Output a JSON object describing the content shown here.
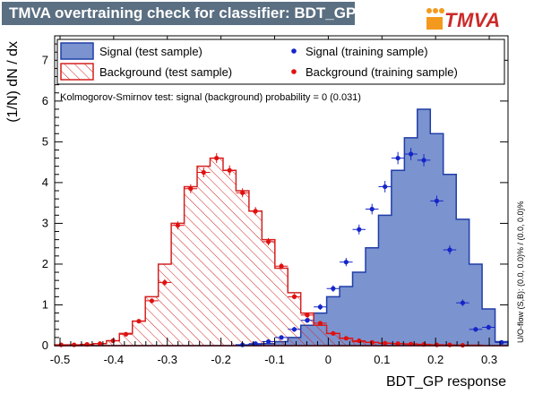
{
  "header": {
    "title": "TMVA overtraining check for classifier: BDT_GP",
    "logo_text": "TMVA"
  },
  "legend": {
    "signal_test": "Signal (test sample)",
    "background_test": "Background (test sample)",
    "signal_train": "Signal (training sample)",
    "background_train": "Background (training sample)"
  },
  "ks_text": "Kolmogorov-Smirnov test: signal (background) probability =     0 (0.031)",
  "side_note": "U/O-flow (S,B): (0.0, 0.0)% / (0.0, 0.0)%",
  "colors": {
    "signal_fill": "#7b93cf",
    "signal_line": "#1f3ea8",
    "background_line": "#d32121",
    "signal_marker": "#1525c8",
    "background_marker": "#e01010",
    "title_bar": "#5b6f82"
  },
  "chart_data": {
    "type": "histogram",
    "xlabel": "BDT_GP response",
    "ylabel": "(1/N) dN / dx",
    "xlim": [
      -0.51,
      0.335
    ],
    "ylim": [
      0,
      7.6
    ],
    "x_ticks": [
      -0.5,
      -0.4,
      -0.3,
      -0.2,
      -0.1,
      0,
      0.1,
      0.2,
      0.3
    ],
    "x_tick_labels": [
      "-0.5",
      "-0.4",
      "-0.3",
      "-0.2",
      "-0.1",
      "0",
      "0.1",
      "0.2",
      "0.3"
    ],
    "y_ticks": [
      0,
      1,
      2,
      3,
      4,
      5,
      6,
      7
    ],
    "y_tick_labels": [
      "0",
      "1",
      "2",
      "3",
      "4",
      "5",
      "6",
      "7"
    ],
    "bin_edges": [
      -0.51,
      -0.4858,
      -0.4617,
      -0.4375,
      -0.4134,
      -0.3893,
      -0.3651,
      -0.341,
      -0.3168,
      -0.2927,
      -0.2685,
      -0.2444,
      -0.2203,
      -0.1961,
      -0.172,
      -0.1478,
      -0.1237,
      -0.0995,
      -0.0754,
      -0.0513,
      -0.0271,
      -0.003,
      0.0212,
      0.0453,
      0.0695,
      0.0936,
      0.1177,
      0.1419,
      0.166,
      0.1902,
      0.2143,
      0.2385,
      0.2626,
      0.2867,
      0.3109,
      0.335
    ],
    "series": [
      {
        "name": "Signal (test sample)",
        "style": "filled-histogram",
        "values": [
          0,
          0,
          0,
          0,
          0,
          0,
          0,
          0,
          0,
          0,
          0,
          0,
          0,
          0,
          0.02,
          0.03,
          0.05,
          0.1,
          0.2,
          0.5,
          0.8,
          1.2,
          1.45,
          1.8,
          2.4,
          3.2,
          4.3,
          5.1,
          5.8,
          5.2,
          4.2,
          3.1,
          2.0,
          0.9,
          0.1
        ]
      },
      {
        "name": "Background (test sample)",
        "style": "hatched-histogram",
        "values": [
          0.02,
          0.02,
          0.03,
          0.05,
          0.12,
          0.3,
          0.6,
          1.2,
          2.0,
          3.0,
          3.9,
          4.4,
          4.6,
          4.3,
          3.8,
          3.3,
          2.6,
          1.9,
          1.3,
          0.8,
          0.5,
          0.3,
          0.18,
          0.1,
          0.08,
          0.06,
          0.05,
          0.04,
          0.03,
          0.02,
          0.01,
          0.01,
          0.01,
          0,
          0
        ]
      },
      {
        "name": "Signal (training sample)",
        "style": "points",
        "x": [
          -0.1599,
          -0.1357,
          -0.1116,
          -0.0874,
          -0.0633,
          -0.0392,
          -0.015,
          0.0091,
          0.0333,
          0.0574,
          0.0815,
          0.1057,
          0.1298,
          0.154,
          0.1781,
          0.2022,
          0.2264,
          0.2505,
          0.2747,
          0.2988,
          0.323
        ],
        "values": [
          0.02,
          0.05,
          0.1,
          0.2,
          0.4,
          0.62,
          0.95,
          1.4,
          2.05,
          2.85,
          3.35,
          3.9,
          4.6,
          4.7,
          4.55,
          3.55,
          2.35,
          1.05,
          0.4,
          0.45,
          0.08
        ],
        "errors": [
          0.02,
          0.03,
          0.04,
          0.05,
          0.06,
          0.06,
          0.07,
          0.08,
          0.1,
          0.12,
          0.13,
          0.14,
          0.15,
          0.15,
          0.15,
          0.13,
          0.11,
          0.08,
          0.06,
          0.06,
          0.03
        ]
      },
      {
        "name": "Background (training sample)",
        "style": "points",
        "x": [
          -0.4979,
          -0.4738,
          -0.4496,
          -0.4255,
          -0.4013,
          -0.3772,
          -0.3531,
          -0.3289,
          -0.3048,
          -0.2806,
          -0.2565,
          -0.2323,
          -0.2082,
          -0.184,
          -0.1599,
          -0.1357,
          -0.1116,
          -0.0874,
          -0.0633,
          -0.0392,
          -0.015,
          0.0091,
          0.0333,
          0.0574,
          0.0815,
          0.1057,
          0.1298,
          0.154,
          0.1781,
          0.2022,
          0.2264,
          0.2505
        ],
        "values": [
          0.02,
          0.02,
          0.03,
          0.05,
          0.12,
          0.28,
          0.6,
          1.1,
          1.55,
          2.95,
          3.85,
          4.25,
          4.6,
          4.3,
          3.75,
          3.3,
          2.55,
          1.95,
          1.2,
          0.75,
          0.55,
          0.3,
          0.18,
          0.12,
          0.08,
          0.06,
          0.05,
          0.04,
          0.03,
          0.02,
          0.02,
          0.01
        ],
        "errors": [
          0.01,
          0.01,
          0.01,
          0.02,
          0.03,
          0.04,
          0.05,
          0.06,
          0.08,
          0.1,
          0.11,
          0.12,
          0.12,
          0.12,
          0.11,
          0.1,
          0.09,
          0.08,
          0.06,
          0.05,
          0.04,
          0.03,
          0.02,
          0.02,
          0.02,
          0.01,
          0.01,
          0.01,
          0.01,
          0.01,
          0.01,
          0.01
        ]
      }
    ],
    "grid": false,
    "legend_position": "top"
  }
}
